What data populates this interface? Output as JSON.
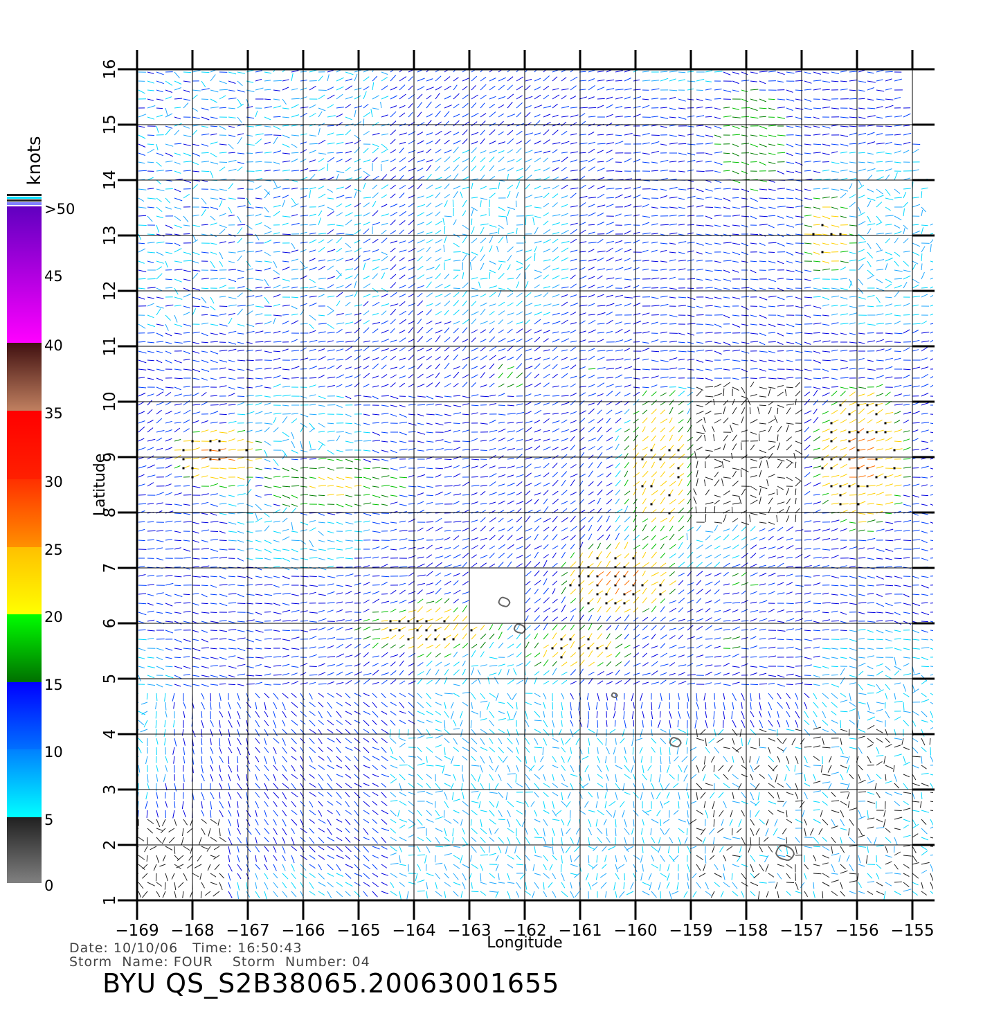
{
  "map": {
    "x_axis_label": "Longitude",
    "y_axis_label": "Latitude",
    "longitude_ticks": [
      -169,
      -168,
      -167,
      -166,
      -165,
      -164,
      -163,
      -162,
      -161,
      -160,
      -159,
      -158,
      -157,
      -156,
      -155
    ],
    "latitude_ticks": [
      1,
      2,
      3,
      4,
      5,
      6,
      7,
      8,
      9,
      10,
      11,
      12,
      13,
      14,
      15,
      16
    ],
    "lon_range": [
      -169,
      -154.6
    ],
    "lat_range": [
      1,
      16
    ],
    "grid": true,
    "swath_edge_longitudes": {
      "lat_16": -155.3,
      "lat_13": -154.6,
      "lat_6": -154.0
    },
    "land_outlines": [
      {
        "lon": -162.37,
        "lat": 6.38
      },
      {
        "lon": -162.09,
        "lat": 5.9
      },
      {
        "lon": -160.38,
        "lat": 4.7
      },
      {
        "lon": -159.28,
        "lat": 3.85
      },
      {
        "lon": -157.3,
        "lat": 1.85
      }
    ]
  },
  "colorbar": {
    "unit_label": "knots",
    "tick_labels": [
      "0",
      "5",
      "10",
      "15",
      "20",
      "25",
      "30",
      "35",
      "40",
      "45",
      ">50"
    ],
    "bands": [
      {
        "from": 0,
        "to": 5,
        "colors": [
          "#808080",
          "#202020"
        ]
      },
      {
        "from": 5,
        "to": 10,
        "colors": [
          "#00ffff",
          "#0080ff"
        ]
      },
      {
        "from": 10,
        "to": 15,
        "colors": [
          "#0070ff",
          "#0000ff"
        ]
      },
      {
        "from": 15,
        "to": 20,
        "colors": [
          "#007000",
          "#00ff00"
        ]
      },
      {
        "from": 20,
        "to": 25,
        "colors": [
          "#ffff00",
          "#ffc000"
        ]
      },
      {
        "from": 25,
        "to": 30,
        "colors": [
          "#ff9000",
          "#ff3000"
        ]
      },
      {
        "from": 30,
        "to": 35,
        "colors": [
          "#ff2000",
          "#ff0000"
        ]
      },
      {
        "from": 35,
        "to": 40,
        "colors": [
          "#c08060",
          "#401010"
        ]
      },
      {
        "from": 40,
        "to": 50,
        "colors": [
          "#ff00ff",
          "#6000c0"
        ]
      }
    ]
  },
  "info": {
    "line1": "Date: 10/10/06   Time: 16:50:43",
    "line2": "Storm  Name: FOUR    Storm  Number: 04",
    "product": "BYU  QS_S2B38065.20063001655"
  }
}
